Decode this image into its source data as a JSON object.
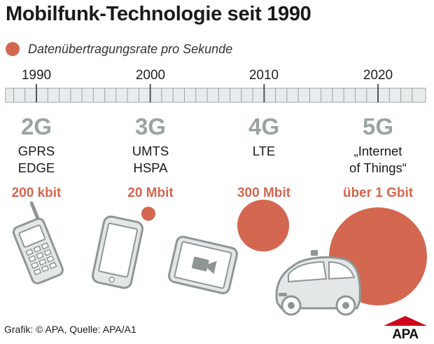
{
  "title": "Mobilfunk-Technologie seit 1990",
  "legend": {
    "label": "Datenübertragungsrate pro Sekunde",
    "color": "#d3674f"
  },
  "timeline": {
    "years": [
      "1990",
      "2000",
      "2010",
      "2020"
    ],
    "start_year": 1990,
    "end_year": 2020
  },
  "generations": [
    {
      "gen": "2G",
      "tech": [
        "GPRS",
        "EDGE"
      ],
      "rate": "200 kbit",
      "year": 1990,
      "device": "feature-phone",
      "rate_kbit": 200
    },
    {
      "gen": "3G",
      "tech": [
        "UMTS",
        "HSPA"
      ],
      "rate": "20 Mbit",
      "year": 2000,
      "device": "smartphone",
      "rate_kbit": 20000
    },
    {
      "gen": "4G",
      "tech": [
        "LTE"
      ],
      "rate": "300 Mbit",
      "year": 2010,
      "device": "tablet",
      "rate_kbit": 300000
    },
    {
      "gen": "5G",
      "tech": [
        "„Internet",
        "of Things“"
      ],
      "rate": "über 1 Gbit",
      "year": 2020,
      "device": "self-driving-car",
      "rate_kbit": 1000000
    }
  ],
  "colors": {
    "accent": "#d3674f",
    "generation": "#9aa4a3",
    "device_stroke": "#8e9796",
    "device_fill": "#e4e7e7"
  },
  "footer": "Grafik: © APA, Quelle: APA/A1",
  "logo": {
    "text": "APA",
    "colors": [
      "#d0021b",
      "#111111"
    ]
  }
}
